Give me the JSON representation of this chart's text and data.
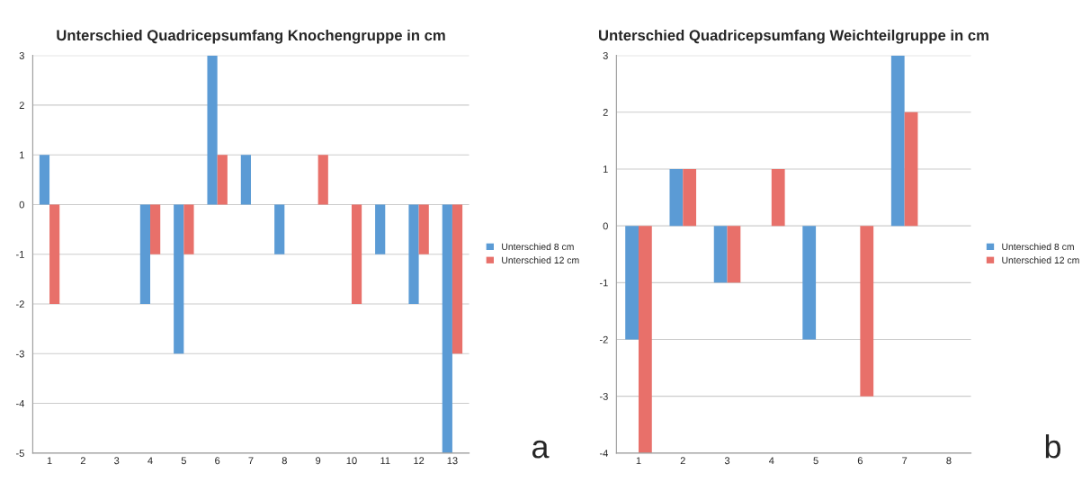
{
  "chart_data": [
    {
      "type": "bar",
      "title": "Unterschied Quadricepsumfang Knochengruppe in cm",
      "categories": [
        "1",
        "2",
        "3",
        "4",
        "5",
        "6",
        "7",
        "8",
        "9",
        "10",
        "11",
        "12",
        "13"
      ],
      "series": [
        {
          "name": "Unterschied 8 cm",
          "color": "#5b9bd5",
          "values": [
            1,
            0,
            0,
            -2,
            -3,
            3,
            1,
            -1,
            0,
            0,
            -1,
            -2,
            -5
          ]
        },
        {
          "name": "Unterschied 12 cm",
          "color": "#e8706a",
          "values": [
            -2,
            0,
            0,
            -1,
            -1,
            1,
            0,
            0,
            1,
            -2,
            0,
            -1,
            -3
          ]
        }
      ],
      "ylim": [
        -5,
        3
      ],
      "yticks": [
        -5,
        -4,
        -3,
        -2,
        -1,
        0,
        1,
        2,
        3
      ],
      "grid": "y",
      "legend": "right",
      "annotations": [
        "a"
      ]
    },
    {
      "type": "bar",
      "title": "Unterschied Quadricepsumfang Weichteilgruppe in cm",
      "categories": [
        "1",
        "2",
        "3",
        "4",
        "5",
        "6",
        "7",
        "8"
      ],
      "series": [
        {
          "name": "Unterschied 8 cm",
          "color": "#5b9bd5",
          "values": [
            -2,
            1,
            -1,
            0,
            -2,
            0,
            3,
            0
          ]
        },
        {
          "name": "Unterschied 12 cm",
          "color": "#e8706a",
          "values": [
            -4,
            1,
            -1,
            1,
            0,
            -3,
            2,
            0
          ]
        }
      ],
      "ylim": [
        -4,
        3
      ],
      "yticks": [
        -4,
        -3,
        -2,
        -1,
        0,
        1,
        2,
        3
      ],
      "grid": "y",
      "legend": "right",
      "annotations": [
        "b"
      ]
    }
  ]
}
